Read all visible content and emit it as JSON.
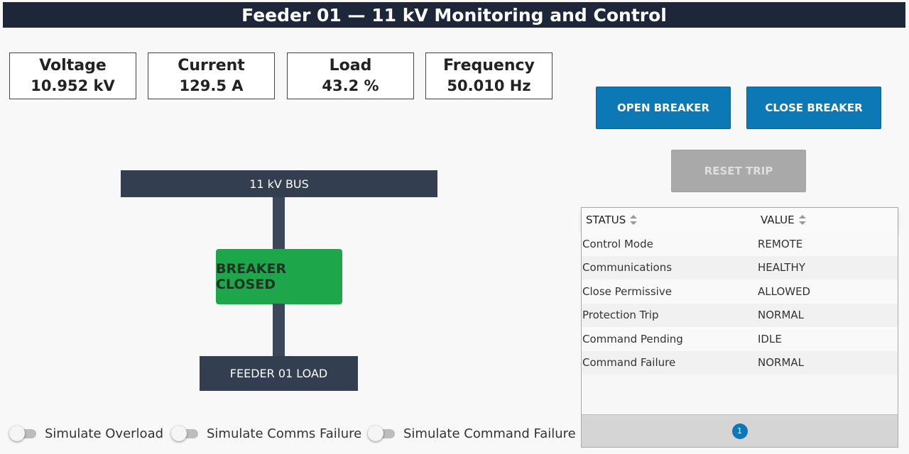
{
  "header": {
    "title": "Feeder 01 — 11 kV Monitoring and Control"
  },
  "metrics": [
    {
      "label": "Voltage",
      "value": "10.952 kV"
    },
    {
      "label": "Current",
      "value": "129.5 A"
    },
    {
      "label": "Load",
      "value": "43.2 %"
    },
    {
      "label": "Frequency",
      "value": "50.010 Hz"
    }
  ],
  "diagram": {
    "bus_label": "11 kV BUS",
    "breaker_label": "BREAKER CLOSED",
    "breaker_color": "#1ea64b",
    "load_label": "FEEDER 01 LOAD"
  },
  "controls": {
    "open_label": "OPEN BREAKER",
    "close_label": "CLOSE BREAKER",
    "reset_label": "RESET TRIP",
    "accent_color": "#0c78b6"
  },
  "status_table": {
    "columns": [
      "STATUS",
      "VALUE"
    ],
    "rows": [
      [
        "Control Mode",
        "REMOTE"
      ],
      [
        "Communications",
        "HEALTHY"
      ],
      [
        "Close Permissive",
        "ALLOWED"
      ],
      [
        "Protection Trip",
        "NORMAL"
      ],
      [
        "Command Pending",
        "IDLE"
      ],
      [
        "Command Failure",
        "NORMAL"
      ]
    ],
    "page": "1"
  },
  "toggles": [
    {
      "label": "Simulate Overload",
      "checked": false
    },
    {
      "label": "Simulate Comms Failure",
      "checked": false
    },
    {
      "label": "Simulate Command Failure",
      "checked": false
    }
  ]
}
